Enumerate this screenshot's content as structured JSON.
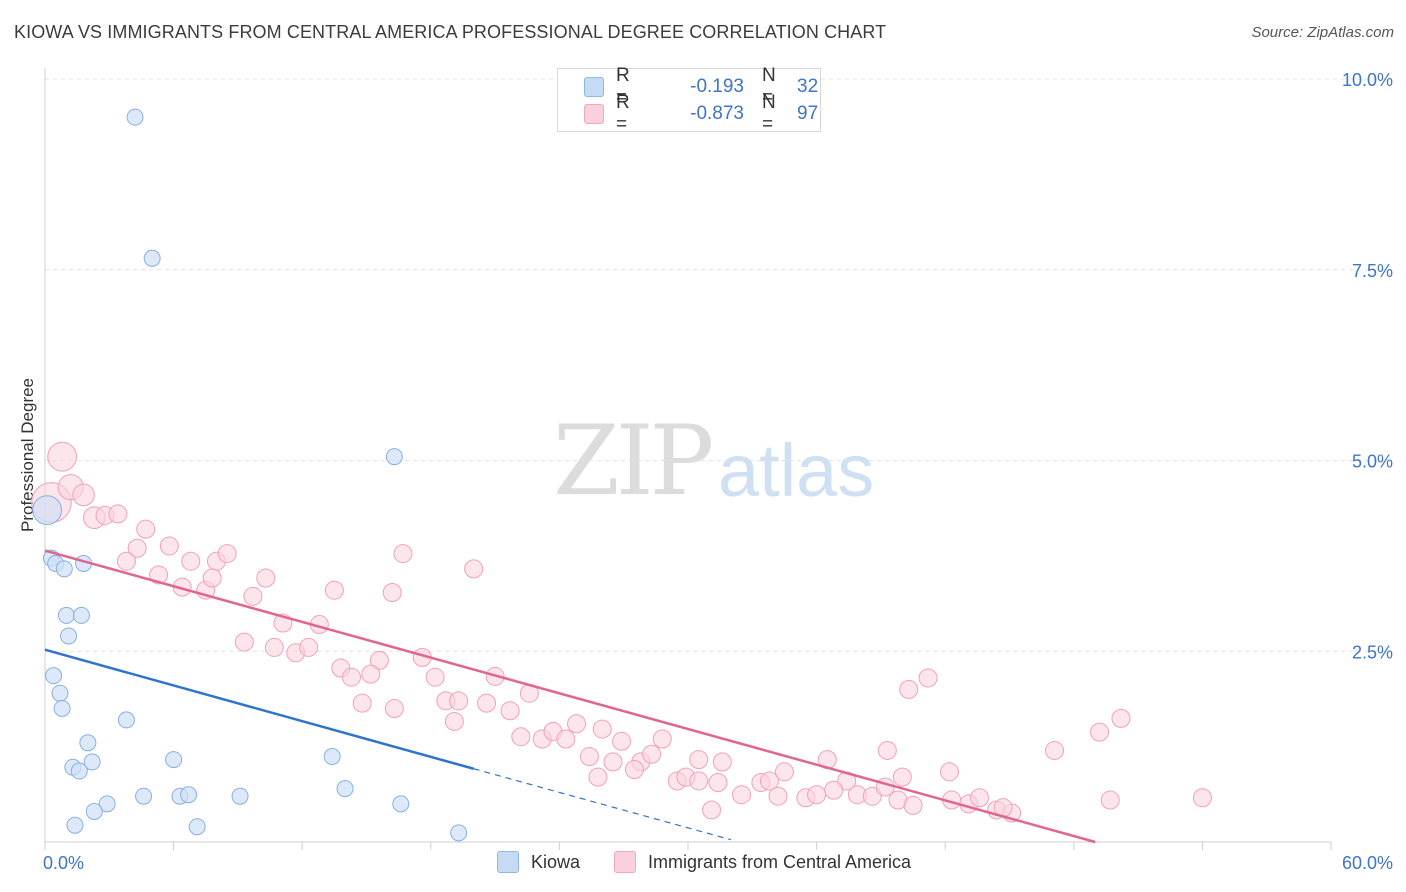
{
  "title": "KIOWA VS IMMIGRANTS FROM CENTRAL AMERICA PROFESSIONAL DEGREE CORRELATION CHART",
  "source": "Source: ZipAtlas.com",
  "watermark": {
    "zip": "ZIP",
    "atlas": "atlas"
  },
  "colors": {
    "kiowa": "#8fb8e8",
    "kiowa_line": "#2f74cc",
    "immig": "#f4a7bf",
    "immig_line": "#e0668f",
    "axis_text": "#3f74c9"
  },
  "legend": {
    "rows": [
      {
        "r_label": "R =",
        "r_value": "-0.193",
        "n_label": "N =",
        "n_value": "32"
      },
      {
        "r_label": "R =",
        "r_value": "-0.873",
        "n_label": "N =",
        "n_value": "97"
      }
    ]
  },
  "bottom_legend": {
    "kiowa": "Kiowa",
    "immig": "Immigrants from Central America"
  },
  "chart_data": {
    "type": "scatter",
    "title": "KIOWA VS IMMIGRANTS FROM CENTRAL AMERICA PROFESSIONAL DEGREE CORRELATION CHART",
    "xlabel": "",
    "ylabel": "Professional Degree",
    "xlim": [
      0,
      60
    ],
    "ylim": [
      0,
      10.5
    ],
    "x_tick_labels": [
      "0.0%",
      "60.0%"
    ],
    "y_tick_labels": [
      "2.5%",
      "5.0%",
      "7.5%",
      "10.0%"
    ],
    "y_ticks": [
      2.5,
      5.0,
      7.5,
      10.0
    ],
    "grid": true,
    "legend_position": "top-center",
    "series": [
      {
        "name": "Kiowa",
        "trend": {
          "x": [
            0,
            20
          ],
          "y": [
            2.52,
            0.96
          ],
          "dashed_to": [
            32,
            0.03
          ]
        },
        "points": [
          [
            0.1,
            4.35,
            1.8
          ],
          [
            4.2,
            9.5,
            1
          ],
          [
            5.0,
            7.65,
            1
          ],
          [
            16.3,
            5.05,
            1
          ],
          [
            0.3,
            3.72,
            1
          ],
          [
            0.5,
            3.65,
            1
          ],
          [
            0.9,
            3.58,
            1
          ],
          [
            1.8,
            3.65,
            1
          ],
          [
            1.0,
            2.97,
            1
          ],
          [
            1.7,
            2.97,
            1
          ],
          [
            1.1,
            2.7,
            1
          ],
          [
            0.4,
            2.18,
            1
          ],
          [
            0.7,
            1.95,
            1
          ],
          [
            0.8,
            1.75,
            1
          ],
          [
            3.8,
            1.6,
            1
          ],
          [
            2.0,
            1.3,
            1
          ],
          [
            6.0,
            1.08,
            1
          ],
          [
            13.4,
            1.12,
            1
          ],
          [
            2.2,
            1.05,
            1
          ],
          [
            1.3,
            0.98,
            1
          ],
          [
            1.6,
            0.93,
            1
          ],
          [
            14.0,
            0.7,
            1
          ],
          [
            4.6,
            0.6,
            1
          ],
          [
            6.3,
            0.6,
            1
          ],
          [
            6.7,
            0.62,
            1
          ],
          [
            9.1,
            0.6,
            1
          ],
          [
            2.9,
            0.5,
            1
          ],
          [
            16.6,
            0.5,
            1
          ],
          [
            2.3,
            0.4,
            1
          ],
          [
            1.4,
            0.22,
            1
          ],
          [
            7.1,
            0.2,
            1
          ],
          [
            19.3,
            0.12,
            1
          ]
        ]
      },
      {
        "name": "Immigrants from Central America",
        "trend": {
          "x": [
            0,
            49
          ],
          "y": [
            3.82,
            0.0
          ]
        },
        "points": [
          [
            0.3,
            4.45,
            2.2
          ],
          [
            0.8,
            5.05,
            1.6
          ],
          [
            1.2,
            4.65,
            1.4
          ],
          [
            1.8,
            4.55,
            1.2
          ],
          [
            2.3,
            4.25,
            1.2
          ],
          [
            2.8,
            4.28,
            1
          ],
          [
            3.4,
            4.3,
            1
          ],
          [
            4.7,
            4.1,
            1
          ],
          [
            4.3,
            3.85,
            1
          ],
          [
            5.8,
            3.88,
            1
          ],
          [
            3.8,
            3.68,
            1
          ],
          [
            6.8,
            3.68,
            1
          ],
          [
            8.0,
            3.68,
            1
          ],
          [
            8.5,
            3.78,
            1
          ],
          [
            5.3,
            3.5,
            1
          ],
          [
            6.4,
            3.34,
            1
          ],
          [
            7.5,
            3.3,
            1
          ],
          [
            7.8,
            3.46,
            1
          ],
          [
            10.3,
            3.46,
            1
          ],
          [
            9.7,
            3.22,
            1
          ],
          [
            13.5,
            3.3,
            1
          ],
          [
            16.7,
            3.78,
            1
          ],
          [
            16.2,
            3.27,
            1
          ],
          [
            20.0,
            3.58,
            1
          ],
          [
            11.1,
            2.87,
            1
          ],
          [
            12.8,
            2.85,
            1
          ],
          [
            9.3,
            2.62,
            1
          ],
          [
            10.7,
            2.55,
            1
          ],
          [
            11.7,
            2.48,
            1
          ],
          [
            12.3,
            2.55,
            1
          ],
          [
            13.8,
            2.28,
            1
          ],
          [
            15.6,
            2.38,
            1
          ],
          [
            14.3,
            2.16,
            1
          ],
          [
            17.6,
            2.42,
            1
          ],
          [
            18.2,
            2.16,
            1
          ],
          [
            15.2,
            2.2,
            1
          ],
          [
            21.0,
            2.17,
            1
          ],
          [
            22.6,
            1.95,
            1
          ],
          [
            14.8,
            1.82,
            1
          ],
          [
            16.3,
            1.75,
            1
          ],
          [
            18.7,
            1.85,
            1
          ],
          [
            19.3,
            1.85,
            1
          ],
          [
            20.6,
            1.82,
            1
          ],
          [
            21.7,
            1.72,
            1
          ],
          [
            19.1,
            1.58,
            1
          ],
          [
            22.2,
            1.38,
            1
          ],
          [
            23.2,
            1.35,
            1
          ],
          [
            23.7,
            1.45,
            1
          ],
          [
            24.3,
            1.35,
            1
          ],
          [
            24.8,
            1.55,
            1
          ],
          [
            26.0,
            1.48,
            1
          ],
          [
            25.4,
            1.12,
            1
          ],
          [
            26.9,
            1.32,
            1
          ],
          [
            28.8,
            1.35,
            1
          ],
          [
            26.5,
            1.05,
            1
          ],
          [
            27.8,
            1.05,
            1
          ],
          [
            28.3,
            1.15,
            1
          ],
          [
            30.5,
            1.08,
            1
          ],
          [
            31.6,
            1.05,
            1
          ],
          [
            25.8,
            0.85,
            1
          ],
          [
            27.5,
            0.95,
            1
          ],
          [
            29.5,
            0.8,
            1
          ],
          [
            29.9,
            0.85,
            1
          ],
          [
            30.5,
            0.8,
            1
          ],
          [
            31.4,
            0.78,
            1
          ],
          [
            33.4,
            0.78,
            1
          ],
          [
            33.8,
            0.8,
            1
          ],
          [
            34.5,
            0.92,
            1
          ],
          [
            36.5,
            1.08,
            1
          ],
          [
            37.4,
            0.8,
            1
          ],
          [
            36.8,
            0.68,
            1
          ],
          [
            31.1,
            0.42,
            1
          ],
          [
            32.5,
            0.62,
            1
          ],
          [
            34.2,
            0.6,
            1
          ],
          [
            35.5,
            0.58,
            1
          ],
          [
            36.0,
            0.62,
            1
          ],
          [
            37.9,
            0.62,
            1
          ],
          [
            38.6,
            0.6,
            1
          ],
          [
            39.2,
            0.72,
            1
          ],
          [
            40.0,
            0.85,
            1
          ],
          [
            39.8,
            0.55,
            1
          ],
          [
            40.5,
            0.48,
            1
          ],
          [
            39.3,
            1.2,
            1
          ],
          [
            42.2,
            0.92,
            1
          ],
          [
            42.3,
            0.55,
            1
          ],
          [
            43.1,
            0.5,
            1
          ],
          [
            43.6,
            0.58,
            1
          ],
          [
            44.4,
            0.42,
            1
          ],
          [
            45.1,
            0.38,
            1
          ],
          [
            47.1,
            1.2,
            1
          ],
          [
            49.2,
            1.44,
            1
          ],
          [
            50.2,
            1.62,
            1
          ],
          [
            49.7,
            0.55,
            1
          ],
          [
            54.0,
            0.58,
            1
          ],
          [
            40.3,
            2.0,
            1
          ],
          [
            41.2,
            2.15,
            1
          ],
          [
            44.7,
            0.45,
            1
          ]
        ]
      }
    ]
  }
}
